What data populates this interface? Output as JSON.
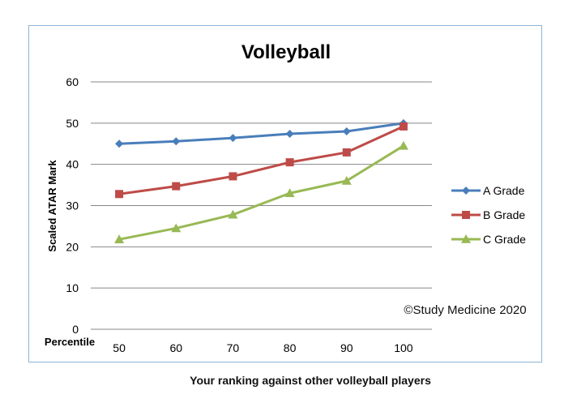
{
  "chart_data": {
    "type": "line",
    "title": "Volleyball",
    "xlabel": "Your ranking against other volleyball players",
    "x_prefix_label": "Percentile",
    "ylabel": "Scaled ATAR Mark",
    "categories": [
      "50",
      "60",
      "70",
      "80",
      "90",
      "100"
    ],
    "ylim": [
      0,
      60
    ],
    "yticks": [
      0,
      10,
      20,
      30,
      40,
      50,
      60
    ],
    "grid": true,
    "legend_position": "right",
    "annotation": "©Study  Medicine  2020",
    "series": [
      {
        "name": "A Grade",
        "color": "#4a7ebb",
        "marker": "diamond",
        "values": [
          45,
          45.6,
          46.4,
          47.4,
          48,
          50
        ]
      },
      {
        "name": "B Grade",
        "color": "#be4b48",
        "marker": "square",
        "values": [
          32.8,
          34.7,
          37.1,
          40.5,
          42.9,
          49.2
        ]
      },
      {
        "name": "C Grade",
        "color": "#98b954",
        "marker": "triangle",
        "values": [
          21.8,
          24.5,
          27.8,
          33,
          36,
          44.5
        ]
      }
    ]
  }
}
